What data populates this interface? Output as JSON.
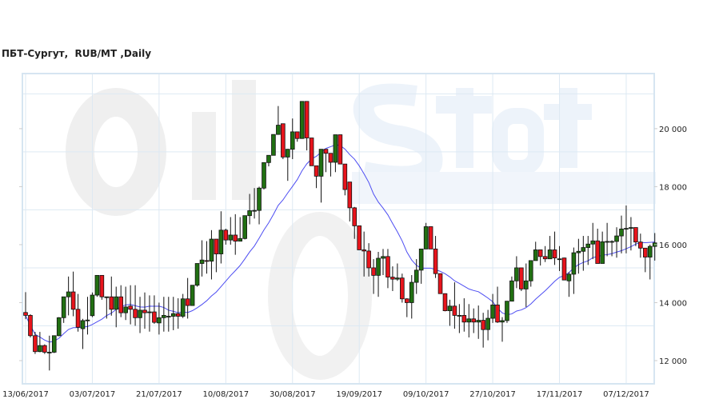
{
  "chart_data": {
    "type": "candlestick",
    "title": "ПБТ-Сургут,  RUB/MT ,Daily",
    "watermark": {
      "text_1": "Oil",
      "text_2": "Stat"
    },
    "ylim": [
      11200,
      21900
    ],
    "y_ticks": [
      12000,
      14000,
      16000,
      18000,
      20000
    ],
    "y_tick_labels": [
      "12 000",
      "14 000",
      "16 000",
      "18 000",
      "20 000"
    ],
    "x_tick_labels": [
      "13/06/2017",
      "03/07/2017",
      "21/07/2017",
      "10/08/2017",
      "30/08/2017",
      "19/09/2017",
      "09/10/2017",
      "27/10/2017",
      "17/11/2017",
      "07/12/2017"
    ],
    "x_tick_every_bars": 14,
    "grid": true,
    "colors": {
      "up": "#217012",
      "down": "#e8141c",
      "moving_average": "#4d4df2",
      "grid": "#dde9f3"
    },
    "moving_average": {
      "shown": true
    },
    "ohlc_columns": [
      "open",
      "high",
      "low",
      "close"
    ],
    "ohlc": [
      [
        13660,
        14360,
        13430,
        13560
      ],
      [
        13560,
        13600,
        12800,
        12860
      ],
      [
        12860,
        12990,
        12230,
        12310
      ],
      [
        12310,
        12990,
        12290,
        12520
      ],
      [
        12520,
        12560,
        12230,
        12290
      ],
      [
        12290,
        12860,
        11660,
        12290
      ],
      [
        12290,
        12860,
        12260,
        12860
      ],
      [
        12860,
        13500,
        12840,
        13480
      ],
      [
        13480,
        14200,
        13300,
        14200
      ],
      [
        14200,
        14900,
        13560,
        14370
      ],
      [
        14370,
        15070,
        13530,
        13770
      ],
      [
        13770,
        14300,
        13000,
        13150
      ],
      [
        13100,
        13440,
        12400,
        13380
      ],
      [
        13380,
        14200,
        12900,
        13400
      ],
      [
        13550,
        14350,
        13500,
        14260
      ],
      [
        14260,
        14940,
        14200,
        14940
      ],
      [
        14940,
        14940,
        14100,
        14200
      ],
      [
        14200,
        14200,
        13450,
        14200
      ],
      [
        14200,
        14900,
        13550,
        13770
      ],
      [
        13770,
        14550,
        13150,
        14200
      ],
      [
        14200,
        14600,
        13500,
        13650
      ],
      [
        13650,
        14550,
        13400,
        13850
      ],
      [
        13880,
        14600,
        13250,
        13770
      ],
      [
        13770,
        14600,
        13200,
        13480
      ],
      [
        13480,
        14200,
        12950,
        13740
      ],
      [
        13740,
        14350,
        13100,
        13650
      ],
      [
        13680,
        14250,
        13000,
        13680
      ],
      [
        13680,
        14250,
        13270,
        13320
      ],
      [
        13300,
        14000,
        12900,
        13480
      ],
      [
        13480,
        14200,
        13000,
        13560
      ],
      [
        13530,
        14200,
        13000,
        13530
      ],
      [
        13530,
        14200,
        13050,
        13620
      ],
      [
        13620,
        14150,
        13100,
        13530
      ],
      [
        13530,
        14300,
        13470,
        14130
      ],
      [
        14130,
        14850,
        13450,
        13900
      ],
      [
        13900,
        14600,
        13900,
        14600
      ],
      [
        14600,
        15350,
        14550,
        15350
      ],
      [
        15350,
        16150,
        14900,
        15470
      ],
      [
        15450,
        16120,
        15000,
        15430
      ],
      [
        15430,
        16500,
        14800,
        16190
      ],
      [
        16190,
        16190,
        15050,
        15680
      ],
      [
        15680,
        17150,
        15350,
        16500
      ],
      [
        16500,
        16550,
        16000,
        16160
      ],
      [
        16160,
        16950,
        16000,
        16330
      ],
      [
        16330,
        17050,
        15650,
        16120
      ],
      [
        16120,
        16950,
        16120,
        16210
      ],
      [
        16210,
        17000,
        16180,
        17000
      ],
      [
        17000,
        17750,
        16700,
        17170
      ],
      [
        17180,
        17950,
        16900,
        17180
      ],
      [
        17180,
        18000,
        16700,
        17950
      ],
      [
        17950,
        18830,
        17900,
        18830
      ],
      [
        18830,
        19080,
        18700,
        19080
      ],
      [
        19080,
        19800,
        19080,
        19800
      ],
      [
        19800,
        20780,
        19800,
        20120
      ],
      [
        20170,
        20170,
        18950,
        19020
      ],
      [
        19020,
        19300,
        18200,
        19290
      ],
      [
        19290,
        20350,
        18950,
        19890
      ],
      [
        19890,
        19890,
        19550,
        19660
      ],
      [
        19660,
        20940,
        19650,
        20940
      ],
      [
        20940,
        20940,
        19250,
        19680
      ],
      [
        19680,
        19680,
        18720,
        18720
      ],
      [
        18720,
        18720,
        17950,
        18360
      ],
      [
        18360,
        19290,
        17450,
        19290
      ],
      [
        19290,
        19290,
        18500,
        19150
      ],
      [
        19150,
        19150,
        18350,
        18840
      ],
      [
        18840,
        19790,
        18500,
        19790
      ],
      [
        19790,
        19790,
        18780,
        18780
      ],
      [
        18780,
        18780,
        17700,
        17900
      ],
      [
        18160,
        18160,
        16800,
        17270
      ],
      [
        17270,
        17300,
        16200,
        16650
      ],
      [
        16650,
        16650,
        15820,
        15820
      ],
      [
        15820,
        16450,
        14900,
        15780
      ],
      [
        15780,
        16050,
        14900,
        15200
      ],
      [
        15200,
        15500,
        14300,
        14940
      ],
      [
        14940,
        15750,
        14200,
        15530
      ],
      [
        15530,
        15850,
        14950,
        15590
      ],
      [
        15590,
        15850,
        14500,
        14880
      ],
      [
        14880,
        15250,
        14400,
        14810
      ],
      [
        14810,
        15350,
        14750,
        14850
      ],
      [
        14850,
        15000,
        14000,
        14130
      ],
      [
        14130,
        14150,
        13500,
        14000
      ],
      [
        14000,
        14950,
        13450,
        14700
      ],
      [
        14700,
        15500,
        14300,
        15120
      ],
      [
        15120,
        15850,
        14650,
        15850
      ],
      [
        15850,
        16750,
        15850,
        16620
      ],
      [
        16620,
        16620,
        15850,
        15850
      ],
      [
        15850,
        16300,
        14850,
        15000
      ],
      [
        15000,
        15000,
        14310,
        14310
      ],
      [
        14310,
        14320,
        13700,
        13720
      ],
      [
        13720,
        14100,
        13200,
        13880
      ],
      [
        13880,
        14700,
        13100,
        13560
      ],
      [
        13560,
        13950,
        12950,
        13560
      ],
      [
        13560,
        14150,
        13000,
        13330
      ],
      [
        13330,
        13950,
        12800,
        13440
      ],
      [
        13440,
        13800,
        12950,
        13330
      ],
      [
        13330,
        13900,
        12750,
        13390
      ],
      [
        13390,
        13650,
        12450,
        13070
      ],
      [
        13070,
        13750,
        12700,
        13460
      ],
      [
        13460,
        14300,
        13300,
        13920
      ],
      [
        13920,
        14550,
        13300,
        13330
      ],
      [
        13330,
        13500,
        12650,
        13380
      ],
      [
        13380,
        14050,
        13300,
        14050
      ],
      [
        14050,
        14900,
        14050,
        14750
      ],
      [
        14750,
        15600,
        14500,
        15200
      ],
      [
        15200,
        15200,
        14400,
        14470
      ],
      [
        14470,
        15350,
        13850,
        14750
      ],
      [
        14750,
        15450,
        14550,
        15450
      ],
      [
        15450,
        16100,
        15450,
        15820
      ],
      [
        15820,
        15820,
        15280,
        15590
      ],
      [
        15590,
        15950,
        15400,
        15510
      ],
      [
        15510,
        16300,
        15520,
        15820
      ],
      [
        15820,
        16450,
        15300,
        15540
      ],
      [
        15510,
        15950,
        15090,
        15510
      ],
      [
        15540,
        15550,
        14780,
        14780
      ],
      [
        14750,
        15050,
        14200,
        14980
      ],
      [
        14980,
        15900,
        14300,
        15720
      ],
      [
        15720,
        16200,
        15000,
        15770
      ],
      [
        15770,
        16300,
        15100,
        15900
      ],
      [
        15900,
        16300,
        15300,
        16020
      ],
      [
        16020,
        16750,
        15500,
        16130
      ],
      [
        16130,
        16550,
        15350,
        15350
      ],
      [
        15350,
        16450,
        15350,
        16100
      ],
      [
        16110,
        16750,
        15600,
        16110
      ],
      [
        16110,
        16150,
        15600,
        16110
      ],
      [
        16110,
        16600,
        15550,
        16300
      ],
      [
        16300,
        17000,
        15700,
        16540
      ],
      [
        16560,
        17350,
        15700,
        16560
      ],
      [
        16560,
        16950,
        15800,
        16590
      ],
      [
        16590,
        16590,
        15950,
        16090
      ],
      [
        16090,
        16380,
        15550,
        15880
      ],
      [
        15880,
        15880,
        15050,
        15570
      ],
      [
        15570,
        16000,
        14800,
        15940
      ],
      [
        15940,
        16400,
        15450,
        16060
      ]
    ]
  }
}
